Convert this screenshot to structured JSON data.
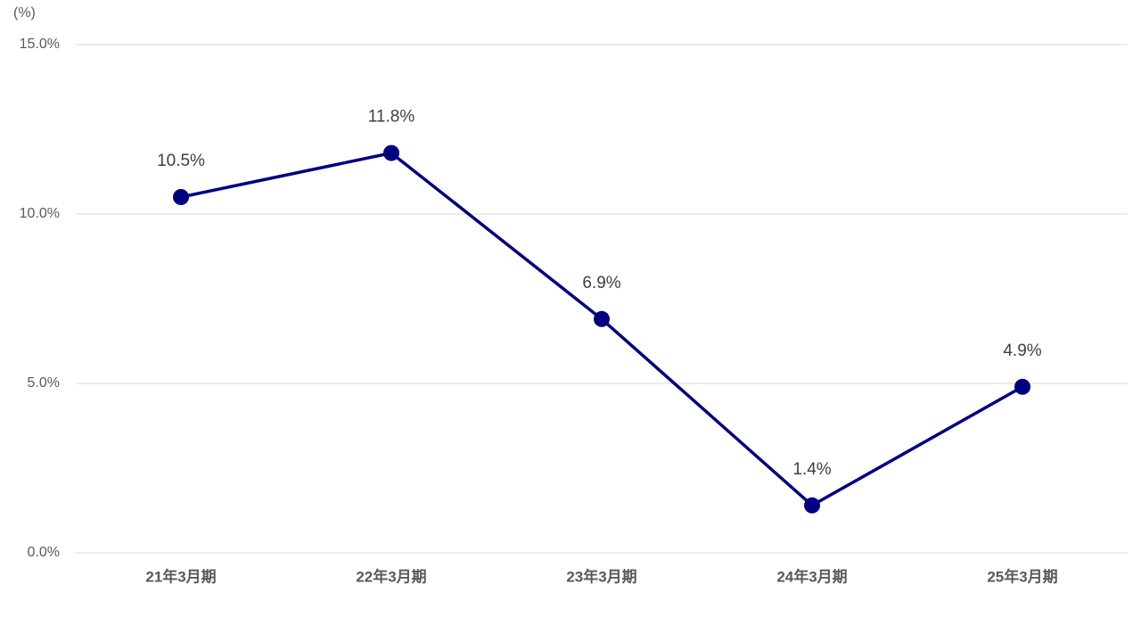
{
  "chart_data": {
    "type": "line",
    "y_unit_label": "(%)",
    "categories": [
      "21年3月期",
      "22年3月期",
      "23年3月期",
      "24年3月期",
      "25年3月期"
    ],
    "series": [
      {
        "color": "#000080",
        "values": [
          10.5,
          11.8,
          6.9,
          1.4,
          4.9
        ],
        "value_labels": [
          "10.5%",
          "11.8%",
          "6.9%",
          "1.4%",
          "4.9%"
        ]
      }
    ],
    "ylim": [
      0,
      15
    ],
    "yticks": [
      {
        "value": 0,
        "label": "0.0%"
      },
      {
        "value": 5,
        "label": "5.0%"
      },
      {
        "value": 10,
        "label": "10.0%"
      },
      {
        "value": 15,
        "label": "15.0%"
      }
    ],
    "grid": true
  }
}
